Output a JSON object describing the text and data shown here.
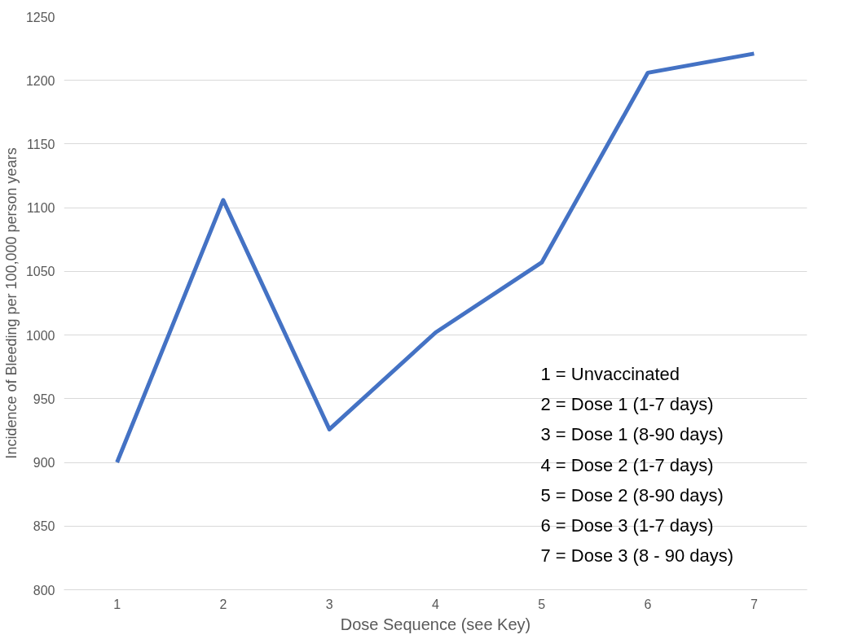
{
  "chart_data": {
    "type": "line",
    "xlabel": "Dose Sequence (see Key)",
    "ylabel": "Incidence of Bleeding per 100,000 person years",
    "categories": [
      "1",
      "2",
      "3",
      "4",
      "5",
      "6",
      "7"
    ],
    "series": [
      {
        "color": "#4472c4",
        "values": [
          900,
          1106,
          926,
          1002,
          1057,
          1206,
          1221
        ]
      }
    ],
    "ylim": [
      800,
      1250
    ],
    "yticks": [
      800,
      850,
      900,
      950,
      1000,
      1050,
      1100,
      1150,
      1200,
      1250
    ],
    "grid": "y",
    "marker": "none",
    "line_style": "solid",
    "annotations": [
      "1 =  Unvaccinated",
      "2 = Dose 1 (1-7 days)",
      "3 = Dose 1 (8-90 days)",
      "4 = Dose 2 (1-7 days)",
      "5 = Dose 2 (8-90 days)",
      "6 = Dose 3 (1-7 days)",
      "7 = Dose 3 (8 - 90 days)"
    ]
  }
}
